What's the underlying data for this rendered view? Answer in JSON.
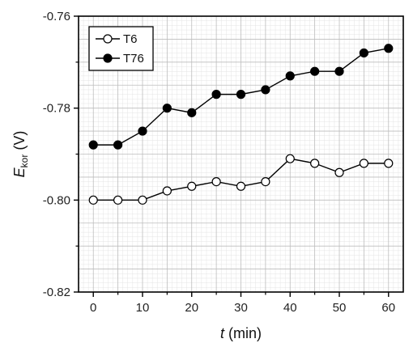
{
  "chart_data": {
    "type": "line",
    "title": "",
    "xlabel_symbol": "t",
    "xlabel_unit": " (min)",
    "ylabel_symbol": "E",
    "ylabel_subscript": "kor",
    "ylabel_unit": " (V)",
    "xlim": [
      -3,
      63
    ],
    "ylim": [
      -0.82,
      -0.76
    ],
    "x_ticks": [
      0,
      10,
      20,
      30,
      40,
      50,
      60
    ],
    "x_tick_labels": [
      "0",
      "10",
      "20",
      "30",
      "40",
      "50",
      "60"
    ],
    "y_ticks": [
      -0.82,
      -0.8,
      -0.78,
      -0.76
    ],
    "y_tick_labels": [
      "-0.82",
      "-0.80",
      "-0.78",
      "-0.76"
    ],
    "grid": true,
    "legend_position": "top-left",
    "x": [
      0,
      5,
      10,
      15,
      20,
      25,
      30,
      35,
      40,
      45,
      50,
      55,
      60
    ],
    "series": [
      {
        "name": "T6",
        "marker": "open-circle",
        "color": "#000000",
        "values": [
          -0.8,
          -0.8,
          -0.8,
          -0.798,
          -0.797,
          -0.796,
          -0.797,
          -0.796,
          -0.791,
          -0.792,
          -0.794,
          -0.792,
          -0.792
        ]
      },
      {
        "name": "T76",
        "marker": "filled-circle",
        "color": "#000000",
        "values": [
          -0.788,
          -0.788,
          -0.785,
          -0.78,
          -0.781,
          -0.777,
          -0.777,
          -0.776,
          -0.773,
          -0.772,
          -0.772,
          -0.768,
          -0.767
        ]
      }
    ]
  }
}
